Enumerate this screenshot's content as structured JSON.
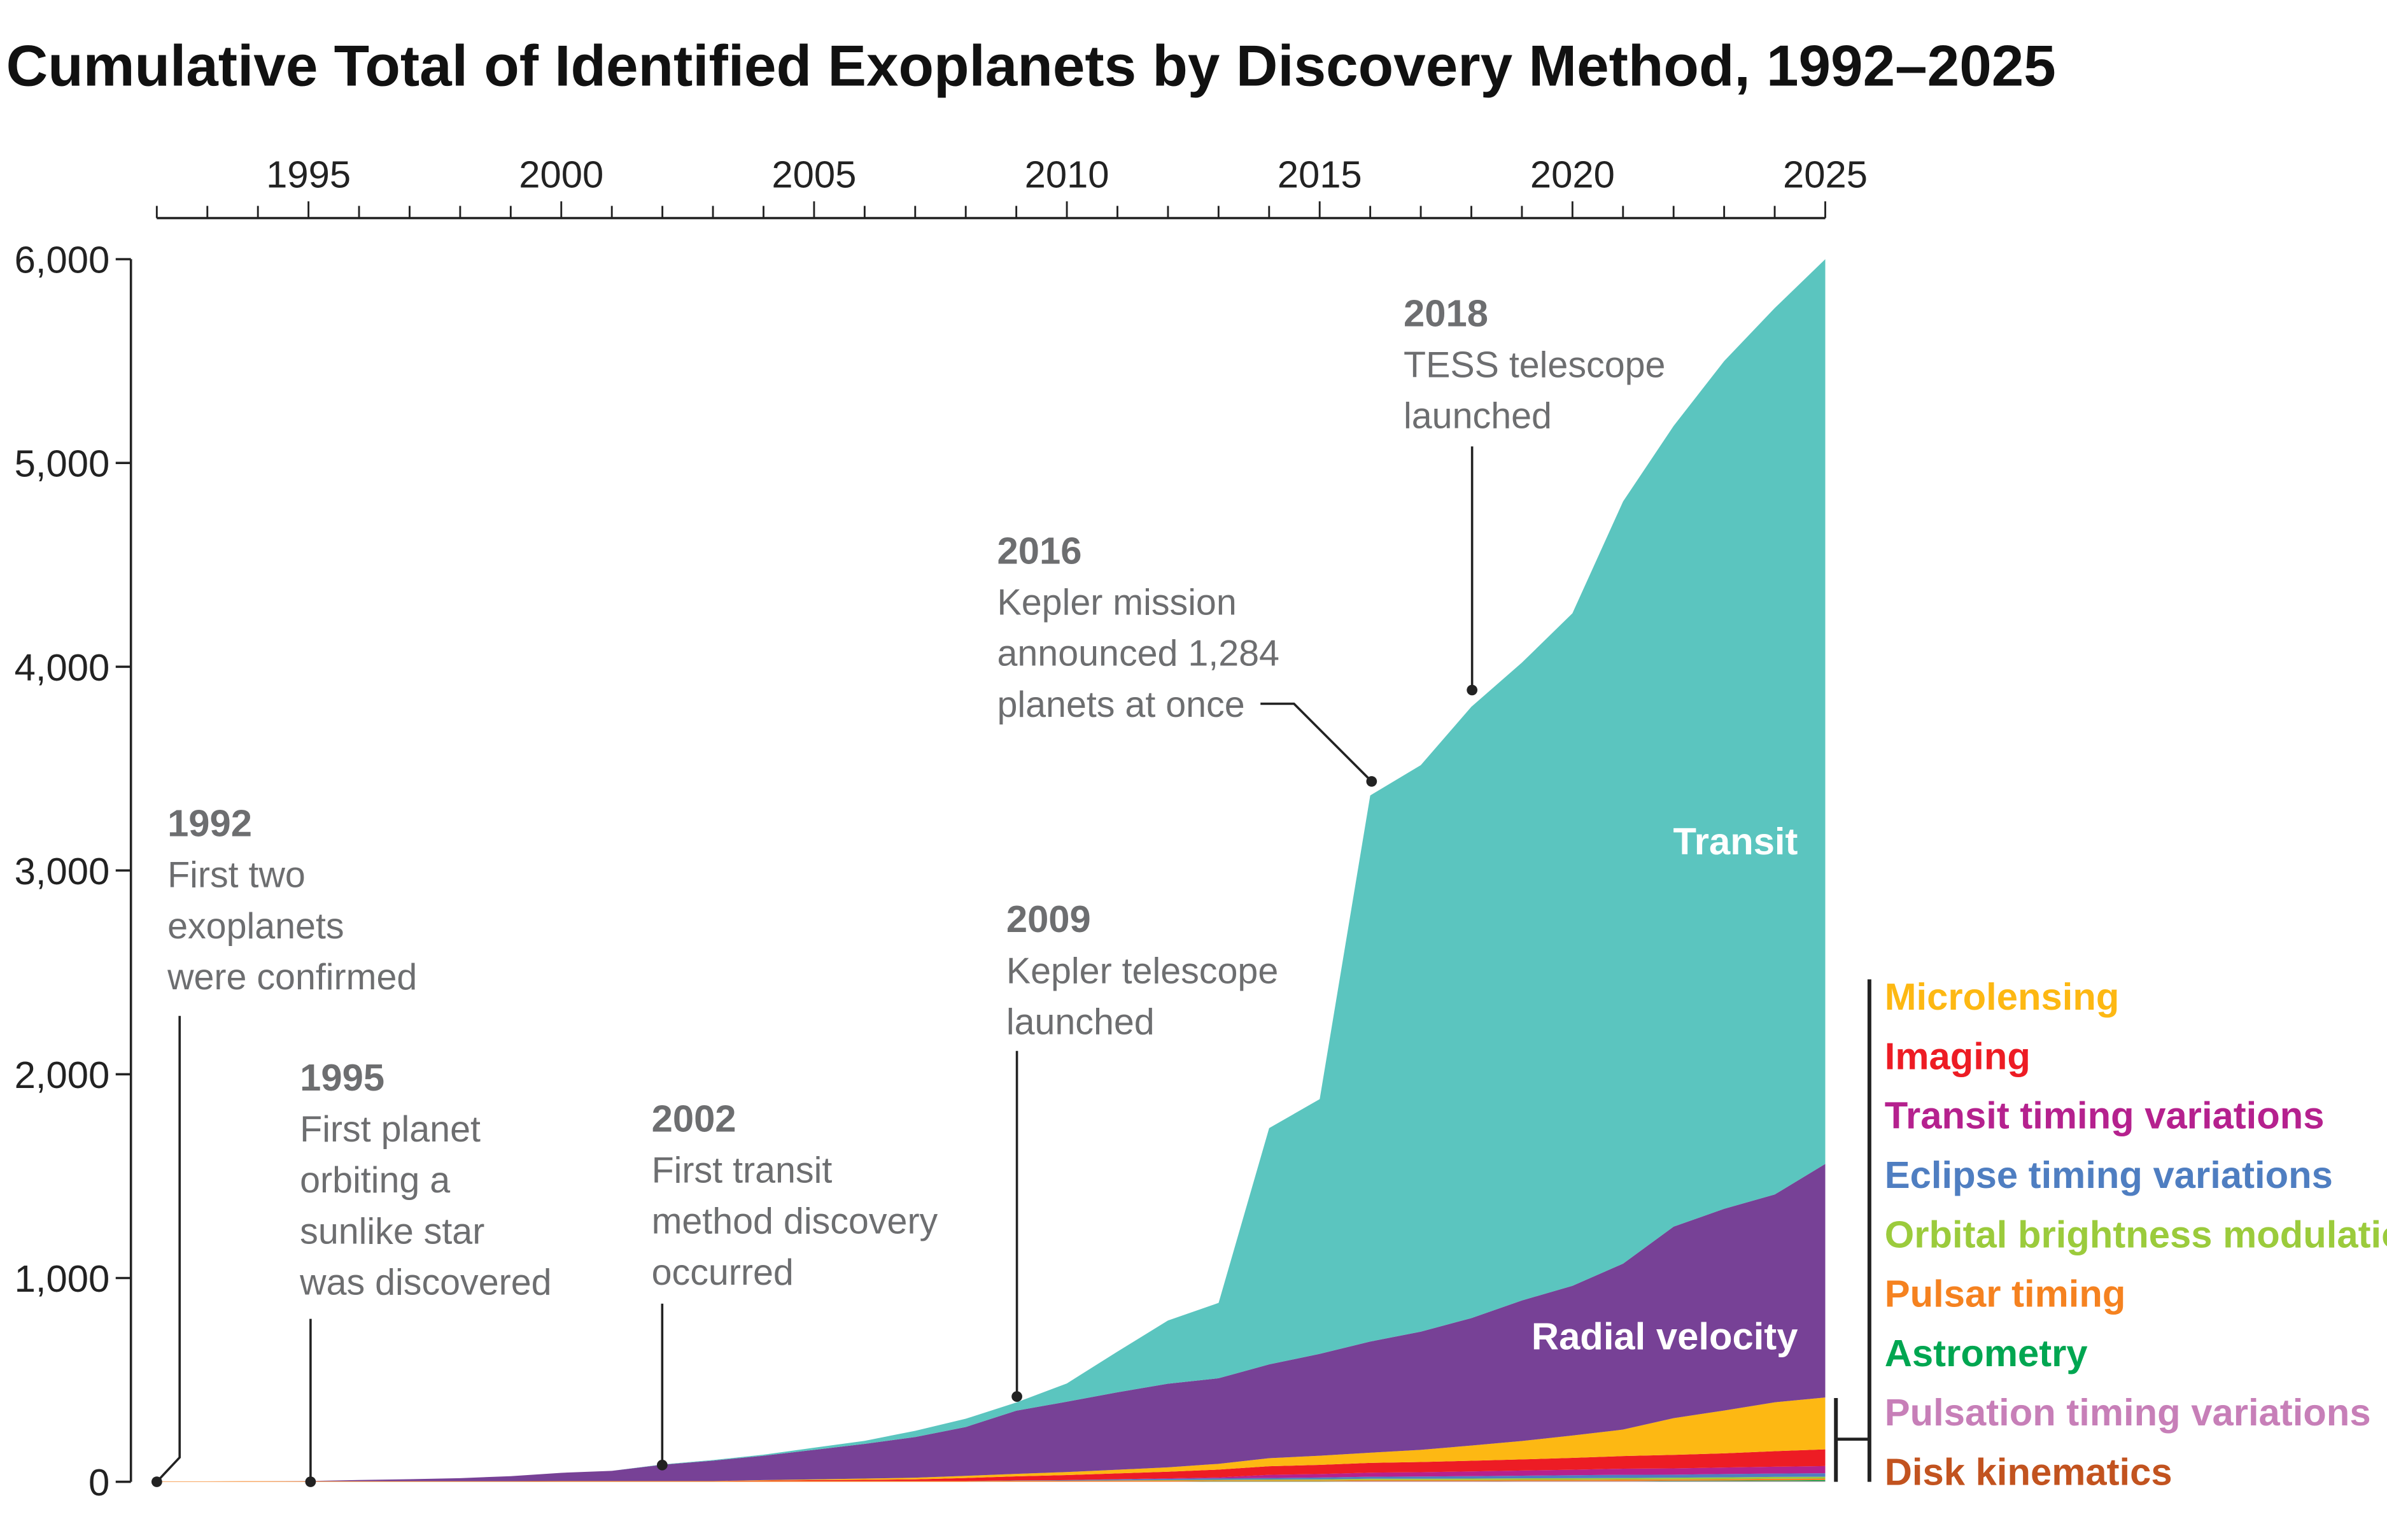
{
  "chart_data": {
    "type": "area",
    "stacked": true,
    "title": "Cumulative Total of Identified Exoplanets by Discovery Method, 1992–2025",
    "xlabel": "",
    "ylabel": "",
    "xlim": [
      1992,
      2025
    ],
    "ylim": [
      0,
      6000
    ],
    "x_axis_position": "top",
    "x_ticks": [
      1995,
      2000,
      2005,
      2010,
      2015,
      2020,
      2025
    ],
    "y_ticks": [
      0,
      1000,
      2000,
      3000,
      4000,
      5000,
      6000
    ],
    "y_tick_labels": [
      "0",
      "1,000",
      "2,000",
      "3,000",
      "4,000",
      "5,000",
      "6,000"
    ],
    "grid": false,
    "legend_placement": "right",
    "x": [
      1992,
      1993,
      1994,
      1995,
      1996,
      1997,
      1998,
      1999,
      2000,
      2001,
      2002,
      2003,
      2004,
      2005,
      2006,
      2007,
      2008,
      2009,
      2010,
      2011,
      2012,
      2013,
      2014,
      2015,
      2016,
      2017,
      2018,
      2019,
      2020,
      2021,
      2022,
      2023,
      2024,
      2025
    ],
    "series": [
      {
        "name": "Disk kinematics",
        "color": "#c2531f",
        "values": [
          0,
          0,
          0,
          0,
          0,
          0,
          0,
          0,
          0,
          0,
          0,
          0,
          0,
          0,
          0,
          0,
          0,
          0,
          0,
          0,
          0,
          0,
          0,
          0,
          0,
          0,
          0,
          1,
          1,
          1,
          1,
          1,
          1,
          1
        ]
      },
      {
        "name": "Pulsation timing variations",
        "color": "#c77fb8",
        "values": [
          0,
          0,
          0,
          0,
          0,
          0,
          0,
          0,
          0,
          0,
          0,
          0,
          0,
          0,
          0,
          0,
          0,
          1,
          1,
          1,
          1,
          1,
          1,
          1,
          2,
          2,
          2,
          2,
          2,
          2,
          2,
          2,
          2,
          2
        ]
      },
      {
        "name": "Astrometry",
        "color": "#00a651",
        "values": [
          0,
          0,
          0,
          0,
          0,
          0,
          0,
          0,
          0,
          0,
          0,
          0,
          0,
          0,
          0,
          0,
          0,
          0,
          0,
          0,
          0,
          1,
          1,
          1,
          1,
          1,
          1,
          1,
          1,
          1,
          2,
          3,
          4,
          5
        ]
      },
      {
        "name": "Pulsar timing",
        "color": "#f58220",
        "values": [
          2,
          2,
          3,
          3,
          3,
          3,
          3,
          3,
          4,
          4,
          4,
          4,
          4,
          4,
          4,
          4,
          4,
          4,
          4,
          5,
          5,
          5,
          5,
          5,
          6,
          6,
          6,
          6,
          6,
          7,
          7,
          7,
          8,
          8
        ]
      },
      {
        "name": "Orbital brightness modulation",
        "color": "#9bcb3c",
        "values": [
          0,
          0,
          0,
          0,
          0,
          0,
          0,
          0,
          0,
          0,
          0,
          0,
          0,
          0,
          0,
          0,
          0,
          0,
          0,
          1,
          2,
          3,
          4,
          5,
          6,
          6,
          7,
          7,
          8,
          8,
          8,
          9,
          9,
          9
        ]
      },
      {
        "name": "Eclipse timing variations",
        "color": "#4f7ec1",
        "values": [
          0,
          0,
          0,
          0,
          0,
          0,
          0,
          0,
          0,
          0,
          0,
          0,
          0,
          0,
          0,
          0,
          0,
          2,
          3,
          5,
          6,
          7,
          8,
          9,
          10,
          11,
          12,
          13,
          14,
          15,
          15,
          16,
          16,
          17
        ]
      },
      {
        "name": "Transit timing variations",
        "color": "#b5218e",
        "values": [
          0,
          0,
          0,
          0,
          0,
          0,
          0,
          0,
          0,
          0,
          0,
          0,
          0,
          0,
          0,
          0,
          0,
          0,
          0,
          1,
          3,
          5,
          15,
          17,
          20,
          21,
          23,
          25,
          27,
          30,
          31,
          32,
          34,
          35
        ]
      },
      {
        "name": "Imaging",
        "color": "#ed1c24",
        "values": [
          0,
          0,
          0,
          0,
          0,
          0,
          0,
          0,
          0,
          0,
          0,
          0,
          2,
          4,
          6,
          8,
          15,
          20,
          25,
          28,
          32,
          38,
          42,
          45,
          48,
          50,
          52,
          55,
          58,
          62,
          66,
          70,
          76,
          82
        ]
      },
      {
        "name": "Microlensing",
        "color": "#fdb813",
        "values": [
          0,
          0,
          0,
          0,
          0,
          0,
          0,
          0,
          0,
          0,
          0,
          0,
          2,
          4,
          6,
          8,
          10,
          12,
          15,
          18,
          22,
          28,
          40,
          45,
          50,
          60,
          75,
          90,
          110,
          130,
          180,
          210,
          240,
          255
        ]
      },
      {
        "name": "Radial velocity",
        "color": "#774196",
        "values": [
          0,
          0,
          0,
          1,
          6,
          10,
          15,
          25,
          40,
          50,
          80,
          100,
          120,
          145,
          170,
          200,
          240,
          310,
          345,
          380,
          410,
          420,
          460,
          500,
          545,
          580,
          625,
          690,
          735,
          815,
          940,
          990,
          1020,
          1146
        ]
      },
      {
        "name": "Transit",
        "color": "#5bc5bf",
        "values": [
          0,
          0,
          0,
          0,
          0,
          0,
          0,
          0,
          0,
          0,
          1,
          3,
          5,
          10,
          15,
          30,
          40,
          40,
          90,
          200,
          310,
          370,
          1160,
          1250,
          2680,
          2780,
          3000,
          3130,
          3300,
          3740,
          3930,
          4160,
          4350,
          4440
        ]
      }
    ],
    "annotations": [
      {
        "year": "1992",
        "lines": [
          "First two",
          "exoplanets",
          "were confirmed"
        ]
      },
      {
        "year": "1995",
        "lines": [
          "First planet",
          "orbiting a",
          "sunlike star",
          "was discovered"
        ]
      },
      {
        "year": "2002",
        "lines": [
          "First transit",
          "method discovery",
          "occurred"
        ]
      },
      {
        "year": "2009",
        "lines": [
          "Kepler telescope",
          "launched"
        ]
      },
      {
        "year": "2016",
        "lines": [
          "Kepler mission",
          "announced 1,284",
          "planets at once"
        ]
      },
      {
        "year": "2018",
        "lines": [
          "TESS telescope",
          "launched"
        ]
      }
    ],
    "inline_labels": {
      "transit": "Transit",
      "radial_velocity": "Radial velocity"
    },
    "legend": [
      "Microlensing",
      "Imaging",
      "Transit timing variations",
      "Eclipse timing variations",
      "Orbital brightness modulation",
      "Pulsar timing",
      "Astrometry",
      "Pulsation timing variations",
      "Disk kinematics"
    ],
    "legend_colors": [
      "#fdb813",
      "#ed1c24",
      "#b5218e",
      "#4f7ec1",
      "#9bcb3c",
      "#f58220",
      "#00a651",
      "#c77fb8",
      "#c2531f"
    ]
  }
}
